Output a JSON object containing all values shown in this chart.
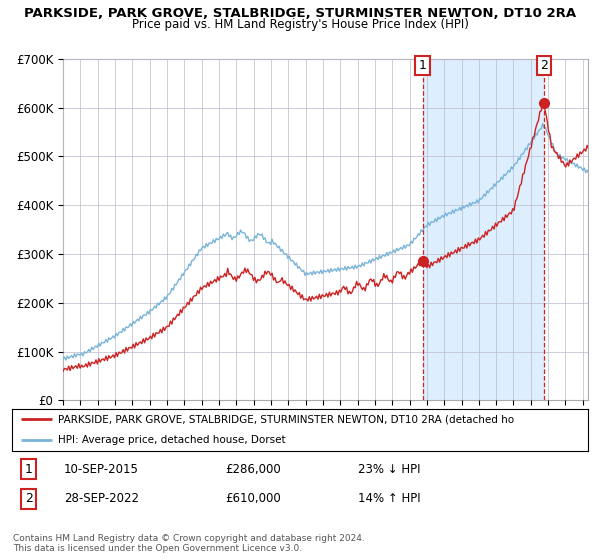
{
  "title": "PARKSIDE, PARK GROVE, STALBRIDGE, STURMINSTER NEWTON, DT10 2RA",
  "subtitle": "Price paid vs. HM Land Registry's House Price Index (HPI)",
  "ylim": [
    0,
    700000
  ],
  "yticks": [
    0,
    100000,
    200000,
    300000,
    400000,
    500000,
    600000,
    700000
  ],
  "ytick_labels": [
    "£0",
    "£100K",
    "£200K",
    "£300K",
    "£400K",
    "£500K",
    "£600K",
    "£700K"
  ],
  "hpi_color": "#7ab4d8",
  "price_color": "#cc2222",
  "shaded_color": "#ddeeff",
  "annotation1": {
    "label": "1",
    "date": "10-SEP-2015",
    "price": "£286,000",
    "pct": "23% ↓ HPI"
  },
  "annotation2": {
    "label": "2",
    "date": "28-SEP-2022",
    "price": "£610,000",
    "pct": "14% ↑ HPI"
  },
  "legend_line1": "PARKSIDE, PARK GROVE, STALBRIDGE, STURMINSTER NEWTON, DT10 2RA (detached ho",
  "legend_line2": "HPI: Average price, detached house, Dorset",
  "footer": "Contains HM Land Registry data © Crown copyright and database right 2024.\nThis data is licensed under the Open Government Licence v3.0.",
  "vline1_x": 2015.75,
  "vline2_x": 2022.75,
  "marker1_x": 2015.75,
  "marker1_y": 286000,
  "marker2_x": 2022.75,
  "marker2_y": 610000,
  "xlim_left": 1995.0,
  "xlim_right": 2025.3
}
